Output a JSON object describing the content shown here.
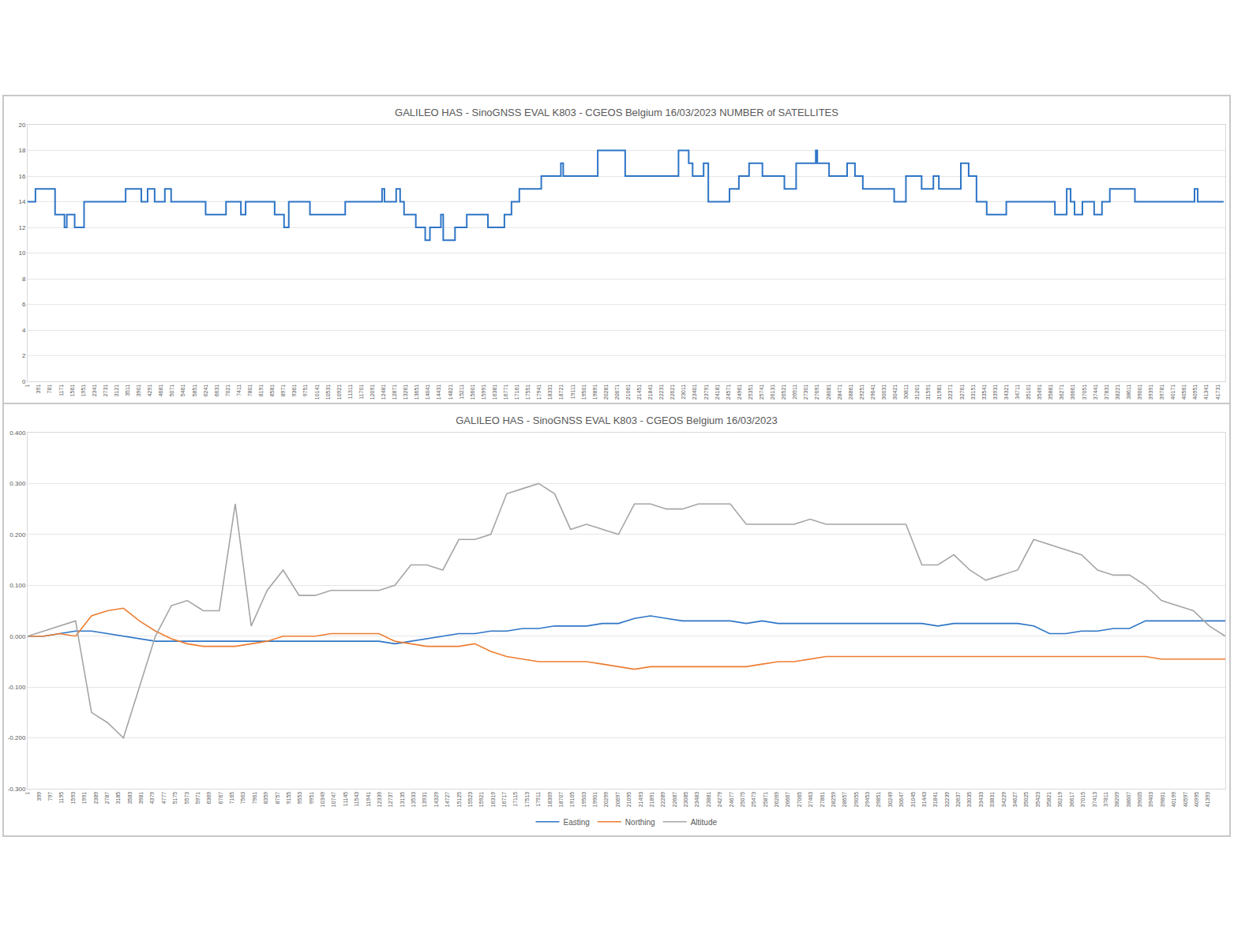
{
  "chart_data": [
    {
      "type": "line",
      "line_style": "step",
      "title": "GALILEO HAS - SinoGNSS EVAL K803 - CGEOS Belgium 16/03/2023 NUMBER of SATELLITES",
      "x": [
        1,
        275,
        963,
        1293,
        1375,
        1650,
        1980,
        3438,
        3988,
        4208,
        4455,
        4813,
        5033,
        6243,
        6958,
        7480,
        7645,
        8663,
        8993,
        9158,
        9900,
        11138,
        12430,
        12513,
        12925,
        13063,
        13200,
        13613,
        13943,
        14108,
        14493,
        14575,
        14988,
        15400,
        16143,
        16720,
        16968,
        17243,
        18013,
        18700,
        18783,
        19993,
        20955,
        22825,
        23183,
        23320,
        23705,
        23870,
        24613,
        24943,
        25300,
        25768,
        26538,
        26950,
        27638,
        27693,
        28105,
        28738,
        29013,
        29288,
        30388,
        30800,
        31350,
        31763,
        31955,
        32725,
        33000,
        33275,
        33633,
        34320,
        36025,
        36438,
        36575,
        36713,
        36988,
        37400,
        37675,
        37950,
        38830,
        40920,
        41030,
        41940
      ],
      "series": [
        {
          "name": "NUMBER of SATELLITES",
          "color": "#2e75c6",
          "values": [
            14,
            15,
            13,
            12,
            13,
            12,
            14,
            15,
            14,
            15,
            14,
            15,
            14,
            13,
            14,
            13,
            14,
            13,
            12,
            14,
            13,
            14,
            15,
            14,
            15,
            14,
            13,
            12,
            11,
            12,
            13,
            11,
            12,
            13,
            12,
            13,
            14,
            15,
            16,
            17,
            16,
            18,
            16,
            18,
            17,
            16,
            17,
            14,
            15,
            16,
            17,
            16,
            15,
            17,
            18,
            17,
            16,
            17,
            16,
            15,
            14,
            16,
            15,
            16,
            15,
            17,
            16,
            14,
            13,
            14,
            13,
            15,
            14,
            13,
            14,
            13,
            14,
            15,
            14,
            15,
            14,
            14
          ]
        }
      ],
      "xlim": [
        1,
        42000
      ],
      "xticks": [
        1,
        391,
        781,
        1171,
        1561,
        1951,
        2341,
        2731,
        3121,
        3511,
        3901,
        4291,
        4681,
        5071,
        5461,
        5851,
        6241,
        6631,
        7021,
        7411,
        7801,
        8191,
        8581,
        8971,
        9361,
        9751,
        10141,
        10531,
        10921,
        11311,
        11701,
        12091,
        12481,
        12871,
        13261,
        13651,
        14041,
        14431,
        14821,
        15211,
        15601,
        15991,
        16381,
        16771,
        17161,
        17551,
        17941,
        18331,
        18721,
        19111,
        19501,
        19891,
        20281,
        20671,
        21061,
        21451,
        21841,
        22231,
        22621,
        23011,
        23401,
        23791,
        24181,
        24571,
        24961,
        25351,
        25741,
        26131,
        26521,
        26911,
        27301,
        27691,
        28081,
        28471,
        28861,
        29251,
        29641,
        30031,
        30421,
        30811,
        31201,
        31591,
        31981,
        32371,
        32761,
        33151,
        33541,
        33931,
        34321,
        34711,
        35101,
        35491,
        35881,
        36271,
        36661,
        37051,
        37441,
        37831,
        38221,
        38611,
        39001,
        39391,
        39781,
        40171,
        40561,
        40951,
        41341,
        41731
      ],
      "ylim": [
        0,
        20
      ],
      "yticks": [
        0,
        2,
        4,
        6,
        8,
        10,
        12,
        14,
        16,
        18,
        20
      ],
      "grid": true
    },
    {
      "type": "line",
      "legend": "bottom",
      "title": "GALILEO HAS - SinoGNSS EVAL K803 - CGEOS Belgium 16/03/2023",
      "x": [
        1,
        561,
        1121,
        1681,
        2241,
        2801,
        3361,
        3921,
        4481,
        5041,
        5601,
        6161,
        6721,
        7281,
        7841,
        8401,
        8961,
        9521,
        10081,
        10641,
        11201,
        11761,
        12321,
        12881,
        13441,
        14001,
        14561,
        15121,
        15681,
        16241,
        16801,
        17361,
        17921,
        18481,
        19041,
        19601,
        20161,
        20721,
        21281,
        21841,
        22401,
        22961,
        23521,
        24081,
        24641,
        25201,
        25761,
        26321,
        26881,
        27441,
        28001,
        28561,
        29121,
        29681,
        30241,
        30801,
        31361,
        31921,
        32481,
        33041,
        33601,
        34161,
        34721,
        35281,
        35841,
        36401,
        36961,
        37521,
        38081,
        38641,
        39201,
        39761,
        40321,
        40881,
        41441,
        42001
      ],
      "series": [
        {
          "name": "Easting",
          "color": "#2e75c6",
          "values": [
            0,
            0,
            0.005,
            0.01,
            0.01,
            0.005,
            0,
            -0.005,
            -0.01,
            -0.01,
            -0.01,
            -0.01,
            -0.01,
            -0.01,
            -0.01,
            -0.01,
            -0.01,
            -0.01,
            -0.01,
            -0.01,
            -0.01,
            -0.01,
            -0.01,
            -0.015,
            -0.01,
            -0.005,
            0,
            0.005,
            0.005,
            0.01,
            0.01,
            0.015,
            0.015,
            0.02,
            0.02,
            0.02,
            0.025,
            0.025,
            0.035,
            0.04,
            0.035,
            0.03,
            0.03,
            0.03,
            0.03,
            0.025,
            0.03,
            0.025,
            0.025,
            0.025,
            0.025,
            0.025,
            0.025,
            0.025,
            0.025,
            0.025,
            0.025,
            0.02,
            0.025,
            0.025,
            0.025,
            0.025,
            0.025,
            0.02,
            0.005,
            0.005,
            0.01,
            0.01,
            0.015,
            0.015,
            0.03,
            0.03,
            0.03,
            0.03,
            0.03,
            0.03
          ]
        },
        {
          "name": "Northing",
          "color": "#ed7d31",
          "values": [
            0,
            0,
            0.005,
            0,
            0.04,
            0.05,
            0.055,
            0.03,
            0.01,
            -0.005,
            -0.015,
            -0.02,
            -0.02,
            -0.02,
            -0.015,
            -0.01,
            0,
            0,
            0,
            0.005,
            0.005,
            0.005,
            0.005,
            -0.01,
            -0.015,
            -0.02,
            -0.02,
            -0.02,
            -0.015,
            -0.03,
            -0.04,
            -0.045,
            -0.05,
            -0.05,
            -0.05,
            -0.05,
            -0.055,
            -0.06,
            -0.065,
            -0.06,
            -0.06,
            -0.06,
            -0.06,
            -0.06,
            -0.06,
            -0.06,
            -0.055,
            -0.05,
            -0.05,
            -0.045,
            -0.04,
            -0.04,
            -0.04,
            -0.04,
            -0.04,
            -0.04,
            -0.04,
            -0.04,
            -0.04,
            -0.04,
            -0.04,
            -0.04,
            -0.04,
            -0.04,
            -0.04,
            -0.04,
            -0.04,
            -0.04,
            -0.04,
            -0.04,
            -0.04,
            -0.045,
            -0.045,
            -0.045,
            -0.045,
            -0.045
          ]
        },
        {
          "name": "Altitude",
          "color": "#a5a5a5",
          "values": [
            0,
            0.01,
            0.02,
            0.03,
            -0.15,
            -0.17,
            -0.2,
            -0.1,
            0,
            0.06,
            0.07,
            0.05,
            0.05,
            0.26,
            0.02,
            0.09,
            0.13,
            0.08,
            0.08,
            0.09,
            0.09,
            0.09,
            0.09,
            0.1,
            0.14,
            0.14,
            0.13,
            0.19,
            0.19,
            0.2,
            0.28,
            0.29,
            0.3,
            0.28,
            0.21,
            0.22,
            0.21,
            0.2,
            0.26,
            0.26,
            0.25,
            0.25,
            0.26,
            0.26,
            0.26,
            0.22,
            0.22,
            0.22,
            0.22,
            0.23,
            0.22,
            0.22,
            0.22,
            0.22,
            0.22,
            0.22,
            0.14,
            0.14,
            0.16,
            0.13,
            0.11,
            0.12,
            0.13,
            0.19,
            0.18,
            0.17,
            0.16,
            0.13,
            0.12,
            0.12,
            0.1,
            0.07,
            0.06,
            0.05,
            0.02,
            0
          ]
        }
      ],
      "xlim": [
        1,
        42001
      ],
      "xticks": [
        1,
        399,
        797,
        1195,
        1593,
        1991,
        2389,
        2787,
        3185,
        3583,
        3981,
        4379,
        4777,
        5175,
        5573,
        5971,
        6369,
        6767,
        7165,
        7563,
        7961,
        8359,
        8757,
        9155,
        9553,
        9951,
        10349,
        10747,
        11145,
        11543,
        11941,
        12339,
        12737,
        13135,
        13533,
        13931,
        14329,
        14727,
        15125,
        15523,
        15921,
        16319,
        16717,
        17115,
        17513,
        17911,
        18309,
        18707,
        19105,
        19503,
        19901,
        20299,
        20697,
        21095,
        21493,
        21891,
        22289,
        22687,
        23085,
        23483,
        23881,
        24279,
        24677,
        25075,
        25473,
        25871,
        26269,
        26667,
        27065,
        27463,
        27861,
        28259,
        28657,
        29055,
        29453,
        29851,
        30249,
        30647,
        31045,
        31443,
        31841,
        32239,
        32637,
        33035,
        33433,
        33831,
        34229,
        34627,
        35025,
        35423,
        35821,
        36219,
        36617,
        37015,
        37413,
        37811,
        38209,
        38607,
        39005,
        39403,
        39801,
        40199,
        40597,
        40995,
        41393
      ],
      "ylim": [
        -0.3,
        0.4
      ],
      "yticks": [
        {
          "value": -0.3,
          "label": "-0.300"
        },
        {
          "value": -0.2,
          "label": "-0.200"
        },
        {
          "value": -0.1,
          "label": "-0.100"
        },
        {
          "value": 0,
          "label": "0.000"
        },
        {
          "value": 0.1,
          "label": "0.100"
        },
        {
          "value": 0.2,
          "label": "0.200"
        },
        {
          "value": 0.3,
          "label": "0.300"
        },
        {
          "value": 0.4,
          "label": "0.400"
        }
      ],
      "grid": true
    }
  ]
}
